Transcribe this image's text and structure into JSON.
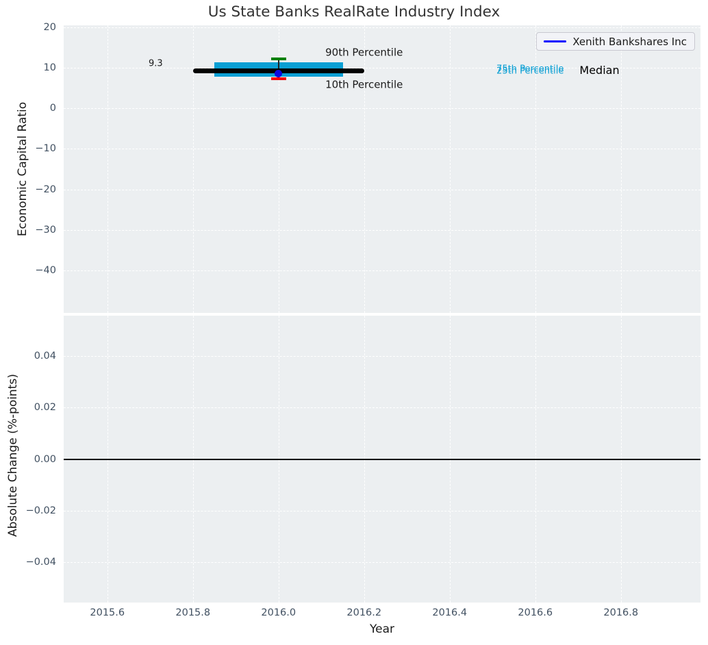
{
  "figure": {
    "title": "Us State Banks RealRate Industry Index",
    "legend": {
      "label": "Xenith Bankshares Inc",
      "line_color": "#0505ff"
    }
  },
  "style": {
    "plot_bg": "#eceff1",
    "grid_color": "#ffffff",
    "tick_color": "#415061",
    "label_color": "#1a1a1a",
    "title_color": "#333333"
  },
  "chart_data": [
    {
      "type": "bar",
      "subtype": "percentile-band-with-point",
      "panel": "top",
      "title": "Us State Banks RealRate Industry Index",
      "ylabel": "Economic Capital Ratio",
      "xlim": [
        2015.498,
        2016.986
      ],
      "ylim": [
        -50.5,
        20.5
      ],
      "yticks": [
        20,
        10,
        0,
        -10,
        -20,
        -30,
        -40
      ],
      "ytick_labels": [
        "20",
        "10",
        "0",
        "−10",
        "−20",
        "−30",
        "−40"
      ],
      "xticks": [
        2015.6,
        2015.8,
        2016.0,
        2016.2,
        2016.4,
        2016.6,
        2016.8
      ],
      "grid": true,
      "legend_position": "upper right",
      "series": {
        "name": "Xenith Bankshares Inc",
        "x": [
          2016.0
        ],
        "values": [
          8.65
        ],
        "color": "#0a0ae0"
      },
      "industry_distribution": {
        "year": 2016.0,
        "median": 9.3,
        "p90": 12.2,
        "p75": 11.3,
        "p25": 7.9,
        "p10": 7.3,
        "median_x_span": [
          2015.8,
          2016.2
        ],
        "box_x_span": [
          2015.85,
          2016.15
        ],
        "median_color": "#000000",
        "box_color": "#0a9fd4",
        "p90_color": "#008000",
        "p10_color": "#f40000",
        "whisker_color": "#222222"
      },
      "annotations": [
        {
          "text": "9.3",
          "x": 2015.713,
          "y": 11.0,
          "color": "#1a1a1a",
          "size": 13
        },
        {
          "text": "90th Percentile",
          "x": 2016.2,
          "y": 13.7,
          "color": "#1a1a1a",
          "size": 15
        },
        {
          "text": "10th Percentile",
          "x": 2016.2,
          "y": 5.8,
          "color": "#1a1a1a",
          "size": 15
        },
        {
          "text": "75th Percentile",
          "x": 2016.588,
          "y": 9.7,
          "color": "#0a9fd4",
          "size": 13
        },
        {
          "text": "25th Percentile",
          "x": 2016.588,
          "y": 9.25,
          "color": "#0a9fd4",
          "size": 13
        },
        {
          "text": "Median",
          "x": 2016.75,
          "y": 9.3,
          "color": "#000000",
          "size": 16
        }
      ]
    },
    {
      "type": "line",
      "panel": "bottom",
      "ylabel": "Absolute Change (%-points)",
      "xlabel": "Year",
      "xlim": [
        2015.498,
        2016.986
      ],
      "ylim": [
        -0.0555,
        0.0555
      ],
      "yticks": [
        0.04,
        0.02,
        0.0,
        -0.02,
        -0.04
      ],
      "ytick_labels": [
        "0.04",
        "0.02",
        "0.00",
        "−0.02",
        "−0.04"
      ],
      "xticks": [
        2015.6,
        2015.8,
        2016.0,
        2016.2,
        2016.4,
        2016.6,
        2016.8
      ],
      "xtick_labels": [
        "2015.6",
        "2015.8",
        "2016.0",
        "2016.2",
        "2016.4",
        "2016.6",
        "2016.8"
      ],
      "grid": true,
      "zero_line": {
        "y": 0.0,
        "color": "#000000"
      }
    }
  ]
}
